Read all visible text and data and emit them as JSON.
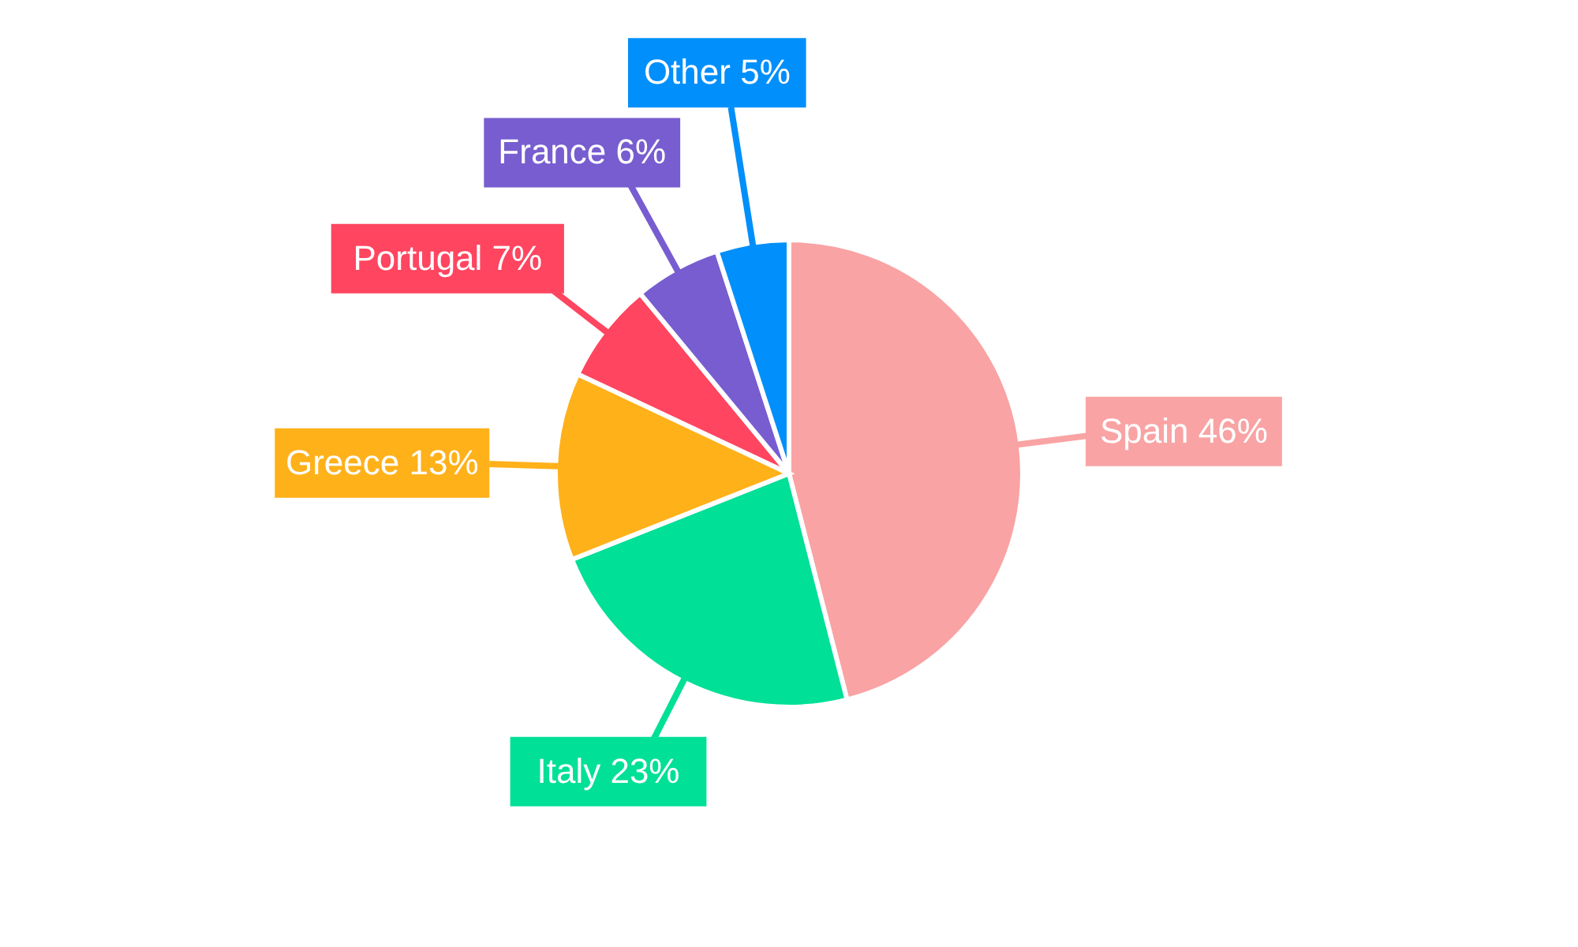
{
  "chart_data": {
    "type": "pie",
    "categories": [
      "Spain",
      "Italy",
      "Greece",
      "Portugal",
      "France",
      "Other"
    ],
    "values": [
      46,
      23,
      13,
      7,
      6,
      5
    ],
    "value_labels": [
      "46%",
      "23%",
      "13%",
      "7%",
      "6%",
      "5%"
    ],
    "colors": [
      "#f9a3a4",
      "#00e096",
      "#ffb11a",
      "#ff4560",
      "#775dd0",
      "#008ffb"
    ]
  }
}
